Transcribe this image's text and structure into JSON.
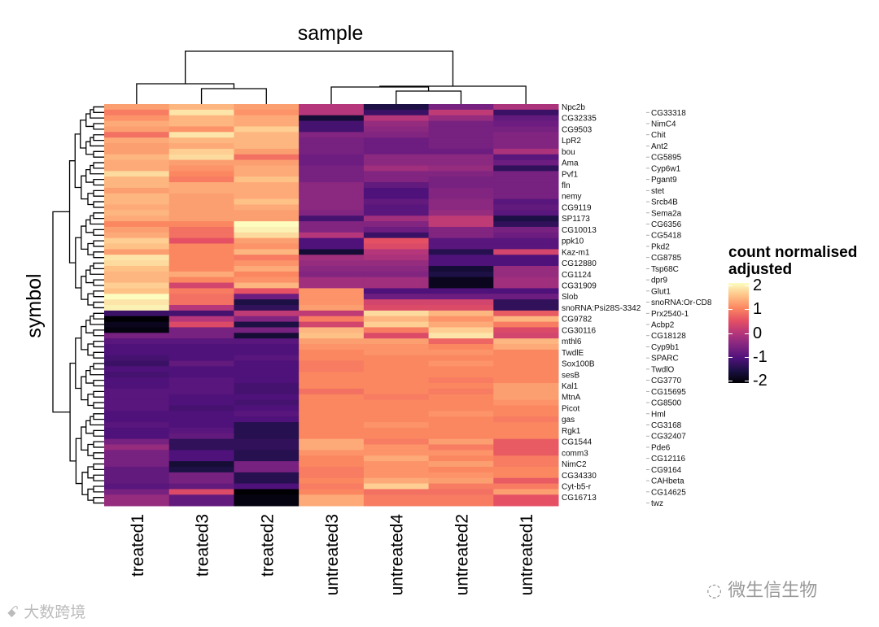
{
  "chart_data": {
    "type": "heatmap",
    "title": "sample",
    "ylabel": "symbol",
    "legend": {
      "title": "count normalised adjusted",
      "ticks": [
        "2",
        "1",
        "0",
        "-1",
        "-2"
      ],
      "range": [
        -2,
        2
      ],
      "placement": "right",
      "colormap": "magma"
    },
    "columns": [
      "treated1",
      "treated3",
      "treated2",
      "untreated3",
      "untreated4",
      "untreated2",
      "untreated1"
    ],
    "rows": [
      "Npc2b",
      "CG33318",
      "CG32335",
      "NimC4",
      "CG9503",
      "Chit",
      "LpR2",
      "Ant2",
      "bou",
      "CG5895",
      "Ama",
      "Cyp6w1",
      "Pvf1",
      "Pgant9",
      "fln",
      "stet",
      "nemy",
      "Srcb4B",
      "CG9119",
      "Sema2a",
      "SP1173",
      "CG6356",
      "CG10013",
      "CG5418",
      "ppk10",
      "Pkd2",
      "Kaz-m1",
      "CG8785",
      "CG12880",
      "Tsp68C",
      "CG1124",
      "dpr9",
      "CG31909",
      "Glut1",
      "Slob",
      "snoRNA:Or-CD8",
      "snoRNA:Psi28S-3342",
      "Prx2540-1",
      "CG9782",
      "Acbp2",
      "CG30116",
      "CG18128",
      "mthl6",
      "Cyp9b1",
      "TwdlE",
      "SPARC",
      "Sox100B",
      "TwdlO",
      "sesB",
      "CG3770",
      "Kal1",
      "CG15695",
      "MtnA",
      "CG8500",
      "Picot",
      "Hml",
      "gas",
      "CG3168",
      "Rgk1",
      "CG32407",
      "CG1544",
      "Pde6",
      "comm3",
      "CG12116",
      "NimC2",
      "CG9164",
      "CG34330",
      "CAHbeta",
      "Cyt-b5-r",
      "CG14625",
      "CG16713",
      "twz"
    ],
    "values": [
      [
        1.2,
        1.4,
        1.2,
        0.0,
        -1.5,
        -0.6,
        -0.1
      ],
      [
        0.9,
        1.8,
        1.1,
        0.0,
        -1.2,
        0.1,
        -1.2
      ],
      [
        1.1,
        1.4,
        1.3,
        -1.6,
        0.0,
        -0.3,
        -0.8
      ],
      [
        1.3,
        1.4,
        1.3,
        -1.1,
        -0.3,
        -0.6,
        -0.7
      ],
      [
        1.2,
        1.1,
        1.6,
        -1.1,
        -0.4,
        -0.6,
        -0.6
      ],
      [
        0.8,
        1.8,
        1.4,
        -0.5,
        -0.5,
        -0.6,
        -0.5
      ],
      [
        1.3,
        1.4,
        1.4,
        -0.6,
        -0.7,
        -0.6,
        -0.5
      ],
      [
        1.2,
        1.3,
        1.4,
        -0.6,
        -0.7,
        -0.6,
        -0.5
      ],
      [
        1.2,
        1.6,
        1.2,
        -0.6,
        -0.7,
        -0.7,
        -0.1
      ],
      [
        1.4,
        1.7,
        0.8,
        -0.7,
        -0.4,
        -0.4,
        -0.9
      ],
      [
        1.3,
        1.2,
        1.2,
        -0.7,
        -0.4,
        -0.4,
        -0.7
      ],
      [
        1.3,
        1.1,
        1.3,
        -0.6,
        -0.2,
        -0.3,
        -1.3
      ],
      [
        1.7,
        1.0,
        1.3,
        -0.6,
        -0.5,
        -0.5,
        -0.6
      ],
      [
        1.4,
        0.9,
        1.5,
        -0.6,
        -0.5,
        -0.6,
        -0.6
      ],
      [
        1.4,
        1.3,
        1.3,
        -0.4,
        -0.8,
        -0.6,
        -0.6
      ],
      [
        1.2,
        1.3,
        1.3,
        -0.4,
        -1.0,
        -0.5,
        -0.6
      ],
      [
        1.4,
        1.2,
        1.3,
        -0.4,
        -1.0,
        -0.5,
        -0.6
      ],
      [
        1.4,
        1.2,
        1.5,
        -0.4,
        -0.8,
        -0.4,
        -0.9
      ],
      [
        1.3,
        1.2,
        1.3,
        -0.4,
        -0.9,
        -0.4,
        -0.8
      ],
      [
        1.4,
        1.2,
        1.2,
        -0.5,
        -0.9,
        -0.3,
        -0.9
      ],
      [
        1.3,
        1.2,
        1.2,
        -1.1,
        -0.2,
        0.1,
        -1.5
      ],
      [
        1.0,
        1.0,
        2.0,
        -0.5,
        -0.5,
        0.1,
        -1.3
      ],
      [
        1.2,
        0.8,
        1.9,
        -0.5,
        -0.7,
        -0.5,
        -0.6
      ],
      [
        1.3,
        0.8,
        1.7,
        0.0,
        -1.2,
        -0.5,
        -0.7
      ],
      [
        1.6,
        0.5,
        1.2,
        -1.0,
        0.5,
        -0.9,
        -0.9
      ],
      [
        1.5,
        1.0,
        1.1,
        -1.0,
        0.4,
        -0.9,
        -0.9
      ],
      [
        1.2,
        1.0,
        1.4,
        -1.6,
        0.0,
        -1.4,
        0.3
      ],
      [
        1.8,
        1.0,
        0.9,
        -0.2,
        -0.1,
        -1.0,
        -1.0
      ],
      [
        1.7,
        1.0,
        1.1,
        -0.3,
        -0.3,
        -1.0,
        -1.0
      ],
      [
        1.5,
        1.0,
        1.3,
        -0.4,
        -0.4,
        -1.6,
        -0.3
      ],
      [
        1.4,
        1.3,
        1.0,
        -0.5,
        -0.5,
        -1.5,
        -0.3
      ],
      [
        1.4,
        1.0,
        1.1,
        -0.2,
        -0.2,
        -1.8,
        -0.2
      ],
      [
        1.6,
        0.3,
        1.4,
        -0.2,
        -0.2,
        -1.8,
        -0.2
      ],
      [
        1.5,
        0.9,
        0.5,
        1.1,
        -1.0,
        -1.0,
        -1.0
      ],
      [
        2.0,
        0.8,
        -0.7,
        1.1,
        -0.7,
        -0.7,
        -0.7
      ],
      [
        1.8,
        0.8,
        -1.5,
        1.1,
        0.3,
        0.3,
        -1.3
      ],
      [
        1.9,
        0.0,
        -1.3,
        1.2,
        0.4,
        0.4,
        -1.3
      ],
      [
        -1.2,
        -1.1,
        0.1,
        0.1,
        1.7,
        1.4,
        0.6
      ],
      [
        -2.1,
        0.0,
        -0.5,
        0.9,
        1.4,
        1.1,
        1.4
      ],
      [
        -1.8,
        0.4,
        -1.5,
        0.3,
        1.6,
        1.3,
        0.9
      ],
      [
        -1.9,
        -0.6,
        -0.6,
        1.4,
        0.9,
        1.6,
        0.4
      ],
      [
        -0.6,
        -0.6,
        -1.6,
        1.5,
        0.4,
        1.8,
        0.3
      ],
      [
        -0.9,
        -0.9,
        -0.9,
        1.2,
        1.2,
        0.7,
        1.4
      ],
      [
        -1.0,
        -1.0,
        -1.0,
        1.1,
        1.1,
        1.0,
        1.3
      ],
      [
        -1.0,
        -1.0,
        -1.0,
        1.0,
        1.1,
        1.1,
        1.0
      ],
      [
        -1.1,
        -1.0,
        -0.9,
        1.0,
        1.0,
        1.0,
        1.0
      ],
      [
        -1.2,
        -0.8,
        -1.0,
        0.9,
        1.0,
        1.1,
        1.0
      ],
      [
        -1.0,
        -1.0,
        -1.0,
        0.9,
        1.0,
        1.0,
        1.0
      ],
      [
        -1.1,
        -1.0,
        -1.0,
        1.0,
        1.0,
        1.0,
        1.0
      ],
      [
        -1.0,
        -0.9,
        -1.0,
        1.0,
        1.0,
        0.9,
        1.0
      ],
      [
        -1.0,
        -0.9,
        -1.1,
        1.0,
        1.0,
        1.0,
        1.2
      ],
      [
        -0.9,
        -0.9,
        -1.1,
        0.8,
        1.0,
        0.9,
        1.2
      ],
      [
        -0.9,
        -1.0,
        -1.0,
        1.0,
        0.9,
        1.0,
        1.2
      ],
      [
        -0.9,
        -1.0,
        -1.1,
        1.0,
        1.0,
        1.0,
        1.1
      ],
      [
        -0.9,
        -1.1,
        -1.0,
        1.0,
        1.0,
        1.0,
        1.0
      ],
      [
        -1.0,
        -1.0,
        -0.9,
        1.0,
        1.0,
        1.1,
        1.0
      ],
      [
        -1.0,
        -1.0,
        -1.0,
        1.0,
        1.0,
        1.0,
        0.9
      ],
      [
        -0.9,
        -1.0,
        -1.4,
        1.0,
        1.1,
        1.0,
        1.0
      ],
      [
        -1.0,
        -0.9,
        -1.4,
        1.0,
        1.0,
        1.0,
        1.0
      ],
      [
        -1.0,
        -0.8,
        -1.4,
        1.0,
        1.0,
        1.0,
        1.0
      ],
      [
        -0.6,
        -1.3,
        -1.3,
        1.3,
        0.9,
        1.2,
        0.6
      ],
      [
        -0.3,
        -1.3,
        -1.3,
        1.3,
        1.1,
        0.9,
        0.6
      ],
      [
        -0.6,
        -1.0,
        -1.4,
        1.1,
        1.1,
        1.1,
        0.6
      ],
      [
        -0.6,
        -1.0,
        -1.4,
        1.0,
        1.3,
        1.0,
        0.9
      ],
      [
        -0.6,
        -1.6,
        -0.6,
        1.0,
        1.1,
        1.2,
        0.9
      ],
      [
        -0.8,
        -1.5,
        -0.6,
        0.9,
        1.1,
        1.0,
        1.0
      ],
      [
        -0.8,
        -0.6,
        -1.4,
        0.9,
        1.1,
        1.1,
        1.0
      ],
      [
        -0.8,
        -0.6,
        -1.4,
        1.0,
        1.3,
        1.2,
        0.6
      ],
      [
        -0.9,
        -0.8,
        -1.0,
        0.9,
        1.6,
        0.9,
        0.9
      ],
      [
        -0.6,
        0.4,
        -2.0,
        1.0,
        0.8,
        0.8,
        1.2
      ],
      [
        -0.3,
        -0.8,
        -1.9,
        1.3,
        0.9,
        0.9,
        0.5
      ],
      [
        -0.3,
        -0.8,
        -1.9,
        1.3,
        0.9,
        0.9,
        0.5
      ]
    ],
    "colormap_stops": [
      "#000004",
      "#1c1044",
      "#4f127b",
      "#812581",
      "#b5367a",
      "#e55064",
      "#fb8761",
      "#fec287",
      "#fcfdbf"
    ]
  },
  "watermarks": {
    "left": "大数跨境",
    "right": "微生信生物"
  }
}
